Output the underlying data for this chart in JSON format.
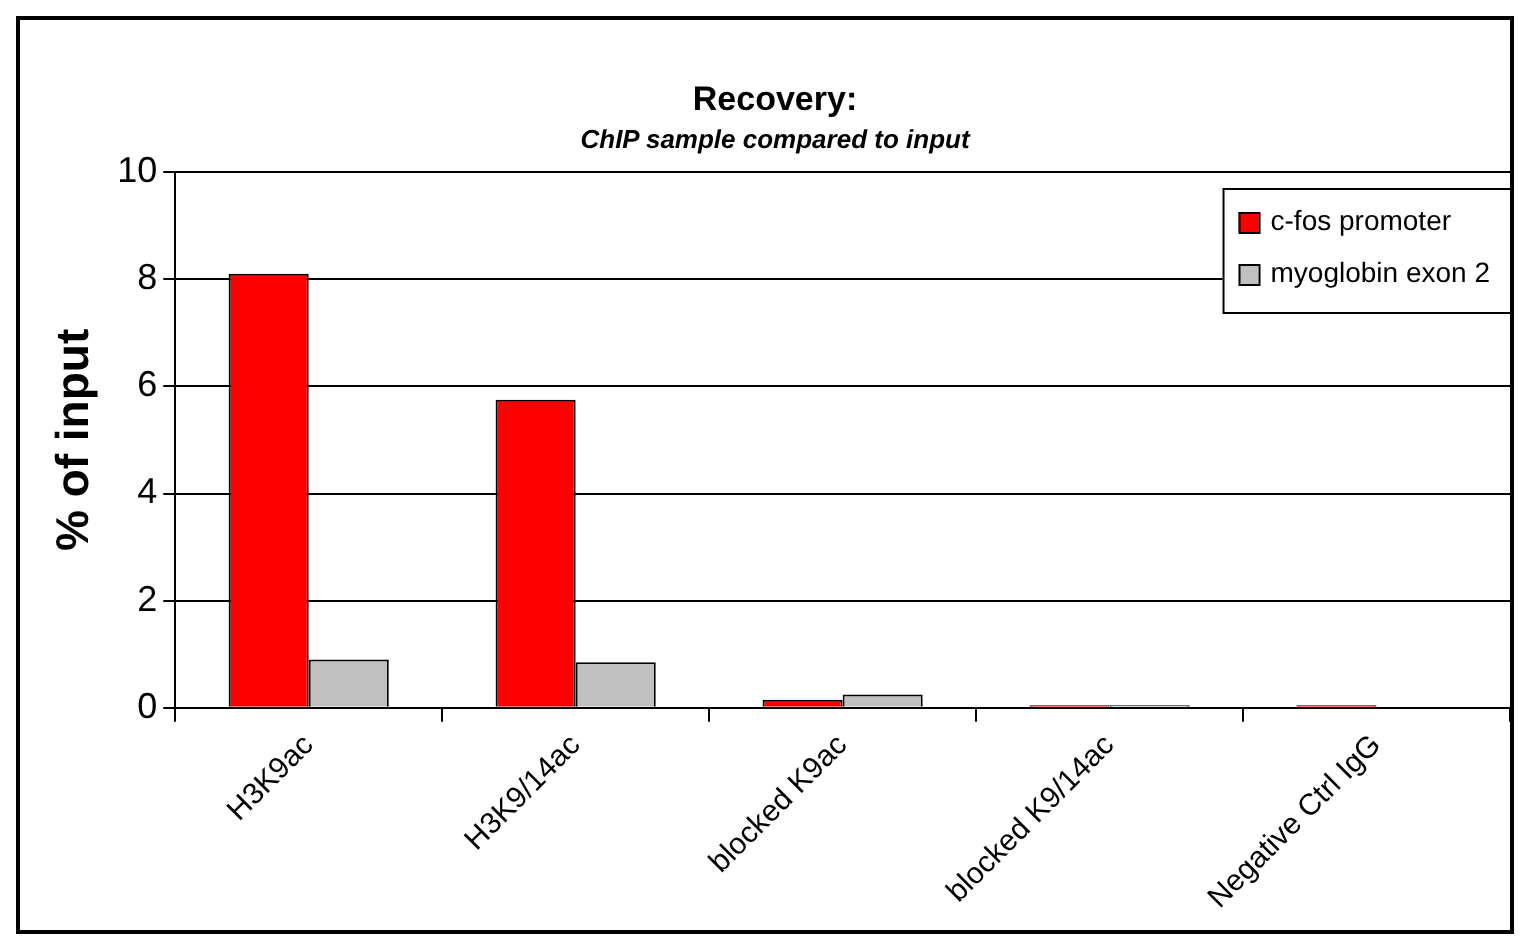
{
  "chart_data": {
    "type": "bar",
    "title": "Recovery:",
    "subtitle": "ChIP sample compared to input",
    "ylabel": "% of input",
    "categories": [
      "H3K9ac",
      "H3K9/14ac",
      "blocked K9ac",
      "blocked K9/14ac",
      "Negative Ctrl IgG"
    ],
    "series": [
      {
        "name": "c-fos promoter",
        "color": "#ff0000",
        "values": [
          8.1,
          5.75,
          0.15,
          0.05,
          0.05
        ]
      },
      {
        "name": "myoglobin exon 2",
        "color": "#c0c0c0",
        "values": [
          0.9,
          0.85,
          0.25,
          0.05,
          0
        ]
      }
    ],
    "ylim": [
      0,
      10
    ],
    "yticks": [
      0,
      2,
      4,
      6,
      8,
      10
    ],
    "grid": "y",
    "legend": "top right"
  }
}
